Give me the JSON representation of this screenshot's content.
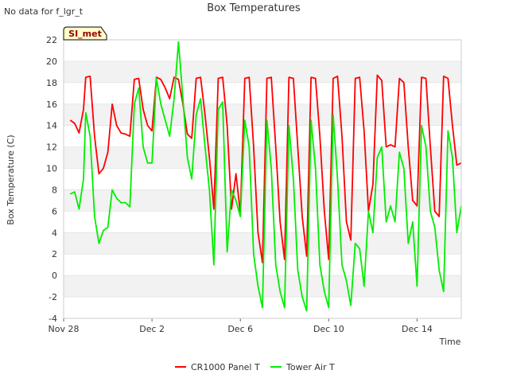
{
  "chart_data": {
    "type": "line",
    "title": "Box Temperatures",
    "no_data_note": "No data for f_lgr_t",
    "badge": "SI_met",
    "xlabel": "Time",
    "ylabel": "Box Temperature (C)",
    "ylim": [
      -4,
      22
    ],
    "yticks": [
      -4,
      -2,
      0,
      2,
      4,
      6,
      8,
      10,
      12,
      14,
      16,
      18,
      20,
      22
    ],
    "xlim_days": [
      0,
      18
    ],
    "xticks": [
      {
        "day": 0,
        "label": "Nov 28"
      },
      {
        "day": 4,
        "label": "Dec 2"
      },
      {
        "day": 8,
        "label": "Dec 6"
      },
      {
        "day": 12,
        "label": "Dec 10"
      },
      {
        "day": 16,
        "label": "Dec 14"
      }
    ],
    "legend_position": "bottom",
    "series": [
      {
        "name": "CR1000 Panel T",
        "color": "#ff0000",
        "x": [
          0.3,
          0.5,
          0.7,
          0.9,
          1.0,
          1.2,
          1.4,
          1.6,
          1.8,
          2.0,
          2.2,
          2.4,
          2.6,
          2.8,
          3.0,
          3.2,
          3.4,
          3.6,
          3.8,
          4.0,
          4.2,
          4.4,
          4.6,
          4.8,
          5.0,
          5.2,
          5.4,
          5.6,
          5.8,
          6.0,
          6.2,
          6.4,
          6.6,
          6.8,
          7.0,
          7.2,
          7.4,
          7.6,
          7.8,
          8.0,
          8.2,
          8.4,
          8.6,
          8.8,
          9.0,
          9.2,
          9.4,
          9.6,
          9.8,
          10.0,
          10.2,
          10.4,
          10.6,
          10.8,
          11.0,
          11.2,
          11.4,
          11.6,
          11.8,
          12.0,
          12.2,
          12.4,
          12.6,
          12.8,
          13.0,
          13.2,
          13.4,
          13.6,
          13.8,
          14.0,
          14.2,
          14.4,
          14.6,
          14.8,
          15.0,
          15.2,
          15.4,
          15.6,
          15.8,
          16.0,
          16.2,
          16.4,
          16.6,
          16.8,
          17.0,
          17.2,
          17.4,
          17.6,
          17.8,
          18.0
        ],
        "values": [
          14.5,
          14.2,
          13.3,
          15.5,
          18.5,
          18.6,
          13.0,
          9.5,
          10.0,
          11.5,
          16.0,
          14.0,
          13.3,
          13.2,
          13.0,
          18.3,
          18.4,
          15.5,
          14.0,
          13.5,
          18.5,
          18.3,
          17.5,
          16.5,
          18.5,
          18.3,
          16.0,
          13.2,
          12.8,
          18.4,
          18.5,
          15.0,
          11.0,
          6.2,
          18.4,
          18.5,
          14.0,
          6.2,
          9.5,
          5.8,
          18.4,
          18.5,
          12.0,
          4.0,
          1.2,
          18.4,
          18.5,
          12.0,
          5.0,
          1.5,
          18.5,
          18.4,
          12.0,
          5.5,
          1.8,
          18.5,
          18.4,
          13.0,
          6.0,
          1.5,
          18.4,
          18.6,
          13.0,
          5.0,
          3.3,
          18.4,
          18.5,
          13.5,
          6.0,
          8.5,
          18.7,
          18.2,
          12.0,
          12.2,
          12.0,
          18.4,
          18.0,
          12.0,
          7.0,
          6.5,
          18.5,
          18.4,
          12.0,
          6.0,
          5.5,
          18.6,
          18.4,
          14.0,
          10.3,
          10.5
        ]
      },
      {
        "name": "Tower Air T",
        "color": "#00ee00",
        "x": [
          0.3,
          0.5,
          0.7,
          0.9,
          1.0,
          1.2,
          1.4,
          1.6,
          1.8,
          2.0,
          2.2,
          2.4,
          2.6,
          2.8,
          3.0,
          3.2,
          3.4,
          3.6,
          3.8,
          4.0,
          4.2,
          4.4,
          4.6,
          4.8,
          5.0,
          5.2,
          5.4,
          5.6,
          5.8,
          6.0,
          6.2,
          6.4,
          6.6,
          6.8,
          7.0,
          7.2,
          7.4,
          7.6,
          7.8,
          8.0,
          8.2,
          8.4,
          8.6,
          8.8,
          9.0,
          9.2,
          9.4,
          9.6,
          9.8,
          10.0,
          10.2,
          10.4,
          10.6,
          10.8,
          11.0,
          11.2,
          11.4,
          11.6,
          11.8,
          12.0,
          12.2,
          12.4,
          12.6,
          12.8,
          13.0,
          13.2,
          13.4,
          13.6,
          13.8,
          14.0,
          14.2,
          14.4,
          14.6,
          14.8,
          15.0,
          15.2,
          15.4,
          15.6,
          15.8,
          16.0,
          16.2,
          16.4,
          16.6,
          16.8,
          17.0,
          17.2,
          17.4,
          17.6,
          17.8,
          18.0
        ],
        "values": [
          7.6,
          7.8,
          6.2,
          9.0,
          15.2,
          13.0,
          5.5,
          3.0,
          4.2,
          4.5,
          8.0,
          7.2,
          6.8,
          6.8,
          6.4,
          16.0,
          17.5,
          12.0,
          10.5,
          10.5,
          18.4,
          16.0,
          14.5,
          13.0,
          16.5,
          21.8,
          16.5,
          11.0,
          9.0,
          15.0,
          16.5,
          12.0,
          8.0,
          1.0,
          15.5,
          16.2,
          2.2,
          8.0,
          7.0,
          5.5,
          14.5,
          12.0,
          2.0,
          -1.0,
          -3.0,
          14.5,
          10.0,
          1.0,
          -1.5,
          -3.0,
          14.0,
          9.0,
          0.5,
          -2.0,
          -3.3,
          14.5,
          10.0,
          1.0,
          -1.5,
          -3.0,
          15.0,
          9.0,
          1.0,
          -0.5,
          -2.8,
          3.0,
          2.5,
          -1.0,
          6.0,
          4.0,
          11.0,
          12.0,
          5.0,
          6.5,
          5.0,
          11.5,
          10.0,
          3.0,
          5.0,
          -1.0,
          14.0,
          12.0,
          6.0,
          4.5,
          0.5,
          -1.5,
          13.5,
          11.0,
          4.0,
          6.5
        ]
      }
    ]
  }
}
